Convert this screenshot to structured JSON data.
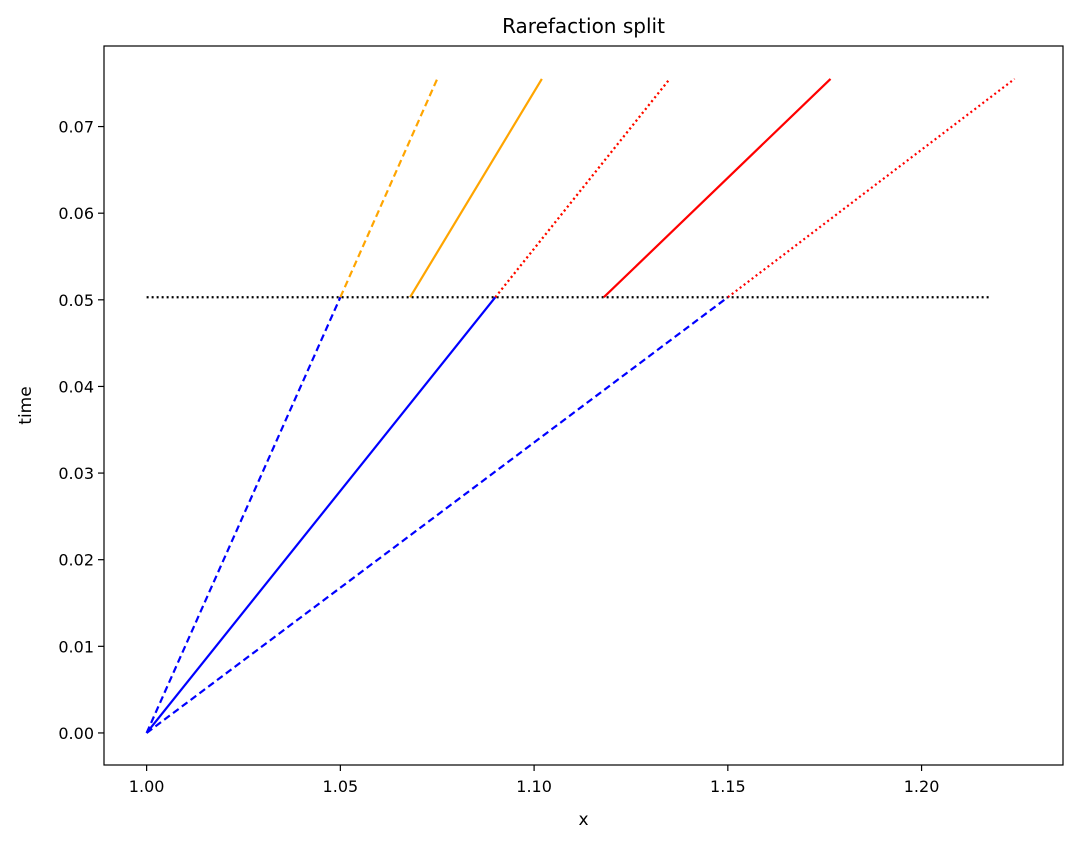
{
  "chart_data": {
    "type": "line",
    "title": "Rarefaction split",
    "xlabel": "x",
    "ylabel": "time",
    "xlim": [
      0.989,
      1.2365
    ],
    "ylim": [
      -0.0037,
      0.0793
    ],
    "xticks": [
      1.0,
      1.05,
      1.1,
      1.15,
      1.2
    ],
    "xtick_labels": [
      "1.00",
      "1.05",
      "1.10",
      "1.15",
      "1.20"
    ],
    "yticks": [
      0.0,
      0.01,
      0.02,
      0.03,
      0.04,
      0.05,
      0.06,
      0.07
    ],
    "ytick_labels": [
      "0.00",
      "0.01",
      "0.02",
      "0.03",
      "0.04",
      "0.05",
      "0.06",
      "0.07"
    ],
    "grid": false,
    "legend": "none",
    "series": [
      {
        "style": "dotted",
        "color": "#000000",
        "x": [
          1.0,
          1.218
        ],
        "y": [
          0.0503,
          0.0503
        ]
      },
      {
        "style": "dashed",
        "color": "#0000ff",
        "x": [
          1.0,
          1.05
        ],
        "y": [
          0.0,
          0.0503
        ]
      },
      {
        "style": "solid",
        "color": "#0000ff",
        "x": [
          1.0,
          1.09
        ],
        "y": [
          0.0,
          0.0503
        ]
      },
      {
        "style": "dashed",
        "color": "#0000ff",
        "x": [
          1.0,
          1.15
        ],
        "y": [
          0.0,
          0.0503
        ]
      },
      {
        "style": "dashed",
        "color": "#ffa500",
        "x": [
          1.05,
          1.075
        ],
        "y": [
          0.0503,
          0.0755
        ]
      },
      {
        "style": "solid",
        "color": "#ffa500",
        "x": [
          1.068,
          1.102
        ],
        "y": [
          0.0503,
          0.0755
        ]
      },
      {
        "style": "dotted",
        "color": "#ffa500",
        "x": [
          1.09,
          1.135
        ],
        "y": [
          0.0503,
          0.0755
        ]
      },
      {
        "style": "dotted",
        "color": "#ff0000",
        "x": [
          1.09,
          1.135
        ],
        "y": [
          0.0503,
          0.0755
        ]
      },
      {
        "style": "solid",
        "color": "#ff0000",
        "x": [
          1.118,
          1.1765
        ],
        "y": [
          0.0503,
          0.0755
        ]
      },
      {
        "style": "dotted",
        "color": "#ff0000",
        "x": [
          1.15,
          1.224
        ],
        "y": [
          0.0503,
          0.0755
        ]
      }
    ]
  }
}
